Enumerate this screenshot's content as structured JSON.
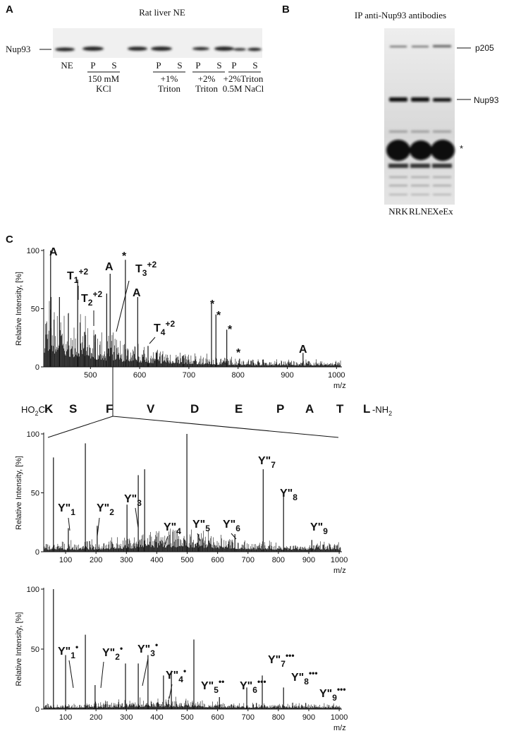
{
  "panel_a": {
    "letter": "A",
    "title": "Rat liver NE",
    "band_label": "Nup93",
    "lanes": [
      "NE",
      "P",
      "S",
      "P",
      "S",
      "P",
      "S",
      "P",
      "S"
    ],
    "conditions": [
      [
        "150 mM",
        "KCl"
      ],
      [
        "+1%",
        "Triton"
      ],
      [
        "+2%",
        "Triton"
      ],
      [
        "+2%Triton",
        "0.5M NaCl"
      ]
    ]
  },
  "panel_b": {
    "letter": "B",
    "title": "IP anti-Nup93 antibodies",
    "band_labels": [
      "p205",
      "Nup93",
      "*"
    ],
    "lanes": [
      "NRK",
      "RLNE",
      "XeEx"
    ]
  },
  "panel_c": {
    "letter": "C",
    "sequence": {
      "start": [
        "HO",
        "2",
        "C-"
      ],
      "residues": [
        "K",
        "S",
        "F",
        "V",
        "D",
        "E",
        "P",
        "A",
        "T",
        "L"
      ],
      "end": [
        "-NH",
        "2"
      ]
    },
    "spectra": [
      {
        "y_label": "Relative Intensity, [%]",
        "x_label": "m/z",
        "xlim": [
          405,
          1011
        ],
        "ylim": [
          0,
          100
        ],
        "xticks": [
          500,
          600,
          700,
          800,
          900,
          1000
        ],
        "yticks": [
          0,
          50,
          100
        ],
        "peaks": [
          {
            "x": 419,
            "y": 100
          },
          {
            "x": 437,
            "y": 60
          },
          {
            "x": 474,
            "y": 75
          },
          {
            "x": 488,
            "y": 30
          },
          {
            "x": 510,
            "y": 28
          },
          {
            "x": 533,
            "y": 63
          },
          {
            "x": 540,
            "y": 80
          },
          {
            "x": 571,
            "y": 92
          },
          {
            "x": 596,
            "y": 60
          },
          {
            "x": 617,
            "y": 18
          },
          {
            "x": 634,
            "y": 12
          },
          {
            "x": 689,
            "y": 10
          },
          {
            "x": 746,
            "y": 55
          },
          {
            "x": 755,
            "y": 45
          },
          {
            "x": 777,
            "y": 32
          },
          {
            "x": 803,
            "y": 7
          },
          {
            "x": 932,
            "y": 12
          }
        ],
        "annotations": [
          {
            "text": "A"
          },
          {
            "text": "T",
            "sub": "1",
            "sup": "+2"
          },
          {
            "text": "T",
            "sub": "2",
            "sup": "+2"
          },
          {
            "text": "A"
          },
          {
            "text": "*"
          },
          {
            "text": "T",
            "sub": "3",
            "sup": "+2"
          },
          {
            "text": "A"
          },
          {
            "text": "T",
            "sub": "4",
            "sup": "+2"
          },
          {
            "text": "*"
          },
          {
            "text": "*"
          },
          {
            "text": "*"
          },
          {
            "text": "*"
          },
          {
            "text": "A"
          }
        ]
      },
      {
        "y_label": "Relative Intensity, [%]",
        "x_label": "m/z",
        "xlim": [
          28,
          1009
        ],
        "ylim": [
          0,
          100
        ],
        "xticks": [
          100,
          200,
          300,
          400,
          500,
          600,
          700,
          800,
          900,
          1000
        ],
        "yticks": [
          0,
          50,
          100
        ],
        "peaks": [
          {
            "x": 60,
            "y": 80
          },
          {
            "x": 109,
            "y": 20
          },
          {
            "x": 165,
            "y": 92
          },
          {
            "x": 204,
            "y": 22
          },
          {
            "x": 302,
            "y": 40
          },
          {
            "x": 339,
            "y": 65
          },
          {
            "x": 360,
            "y": 70
          },
          {
            "x": 499,
            "y": 100
          },
          {
            "x": 538,
            "y": 15
          },
          {
            "x": 657,
            "y": 15
          },
          {
            "x": 750,
            "y": 70
          },
          {
            "x": 817,
            "y": 47
          },
          {
            "x": 910,
            "y": 10
          }
        ],
        "annotations": [
          {
            "text": "Y\"",
            "sub": "1"
          },
          {
            "text": "Y\"",
            "sub": "2"
          },
          {
            "text": "Y\"",
            "sub": "3"
          },
          {
            "text": "Y\"",
            "sub": "4"
          },
          {
            "text": "Y\"",
            "sub": "5"
          },
          {
            "text": "Y\"",
            "sub": "6"
          },
          {
            "text": "Y\"",
            "sub": "7"
          },
          {
            "text": "Y\"",
            "sub": "8"
          },
          {
            "text": "Y\"",
            "sub": "9"
          }
        ]
      },
      {
        "y_label": "Relative Intensity, [%]",
        "x_label": "m/z",
        "xlim": [
          28,
          1009
        ],
        "ylim": [
          0,
          100
        ],
        "xticks": [
          100,
          200,
          300,
          400,
          500,
          600,
          700,
          800,
          900,
          1000
        ],
        "yticks": [
          0,
          50,
          100
        ],
        "peaks": [
          {
            "x": 60,
            "y": 100
          },
          {
            "x": 100,
            "y": 45
          },
          {
            "x": 165,
            "y": 62
          },
          {
            "x": 197,
            "y": 20
          },
          {
            "x": 297,
            "y": 38
          },
          {
            "x": 339,
            "y": 38
          },
          {
            "x": 371,
            "y": 45
          },
          {
            "x": 422,
            "y": 28
          },
          {
            "x": 448,
            "y": 32
          },
          {
            "x": 522,
            "y": 58
          },
          {
            "x": 606,
            "y": 10
          },
          {
            "x": 696,
            "y": 18
          },
          {
            "x": 747,
            "y": 28
          },
          {
            "x": 817,
            "y": 18
          }
        ],
        "annotations": [
          {
            "text": "Y\"",
            "sub": "1",
            "sup": "•"
          },
          {
            "text": "Y\"",
            "sub": "2",
            "sup": "•"
          },
          {
            "text": "Y\"",
            "sub": "3",
            "sup": "•"
          },
          {
            "text": "Y\"",
            "sub": "4",
            "sup": "•"
          },
          {
            "text": "Y\"",
            "sub": "5",
            "sup": "••"
          },
          {
            "text": "Y\"",
            "sub": "6",
            "sup": "•••"
          },
          {
            "text": "Y\"",
            "sub": "7",
            "sup": "•••"
          },
          {
            "text": "Y\"",
            "sub": "8",
            "sup": "•••"
          },
          {
            "text": "Y\"",
            "sub": "9",
            "sup": "•••"
          }
        ]
      }
    ]
  }
}
